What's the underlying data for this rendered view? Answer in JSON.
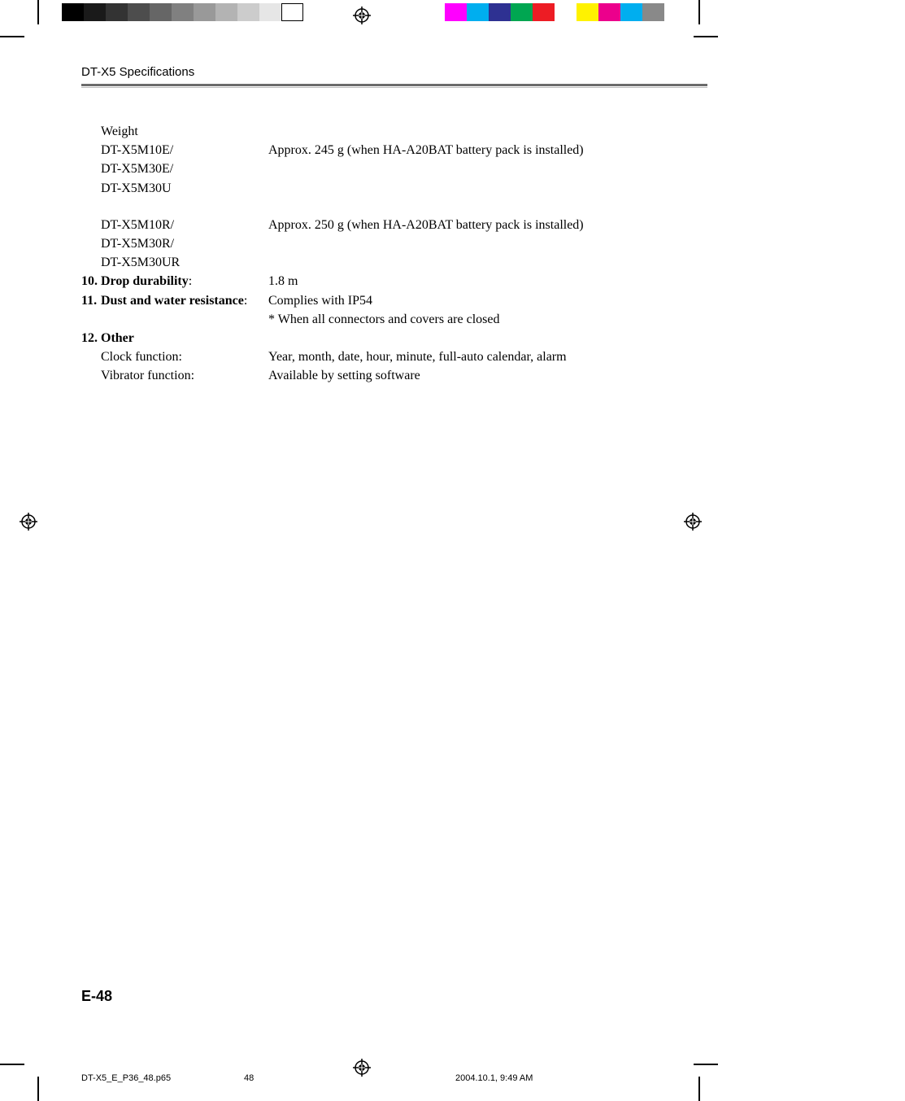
{
  "colors": {
    "gray_swatches": [
      "#000000",
      "#1a1a1a",
      "#333333",
      "#4d4d4d",
      "#666666",
      "#808080",
      "#999999",
      "#b3b3b3",
      "#cccccc",
      "#e6e6e6",
      "#ffffff"
    ],
    "color_swatches": [
      "#ffffff",
      "#ff00ff",
      "#00aeef",
      "#2e3192",
      "#00a651",
      "#ed1c24",
      "#ffffff",
      "#fff200",
      "#ec008c",
      "#00aeef",
      "#898989"
    ],
    "rule_dark": "#6b6b6b",
    "rule_light": "#bdbdbd"
  },
  "header": {
    "running_head": "DT-X5 Specifications"
  },
  "spec": {
    "weight_label": "Weight",
    "weight_group1_models": [
      "DT-X5M10E/",
      "DT-X5M30E/",
      "DT-X5M30U"
    ],
    "weight_group1_value": "Approx. 245 g (when HA-A20BAT battery pack is installed)",
    "weight_group2_models": [
      "DT-X5M10R/",
      "DT-X5M30R/",
      "DT-X5M30UR"
    ],
    "weight_group2_value": "Approx. 250 g (when HA-A20BAT battery pack is installed)",
    "item10_num": "10.",
    "item10_label": "Drop durability",
    "item10_value": "1.8 m",
    "item11_num": "11.",
    "item11_label": "Dust and water resistance",
    "item11_value1": "Complies with IP54",
    "item11_value2": "* When all connectors and covers are closed",
    "item12_num": "12.",
    "item12_label": "Other",
    "clock_label": "Clock function:",
    "clock_value": "Year, month, date, hour, minute, full-auto calendar, alarm",
    "vib_label": "Vibrator function:",
    "vib_value": "Available by setting software"
  },
  "footer": {
    "page_number": "E-48",
    "slug_file": "DT-X5_E_P36_48.p65",
    "slug_page": "48",
    "slug_date": "2004.10.1, 9:49 AM"
  }
}
